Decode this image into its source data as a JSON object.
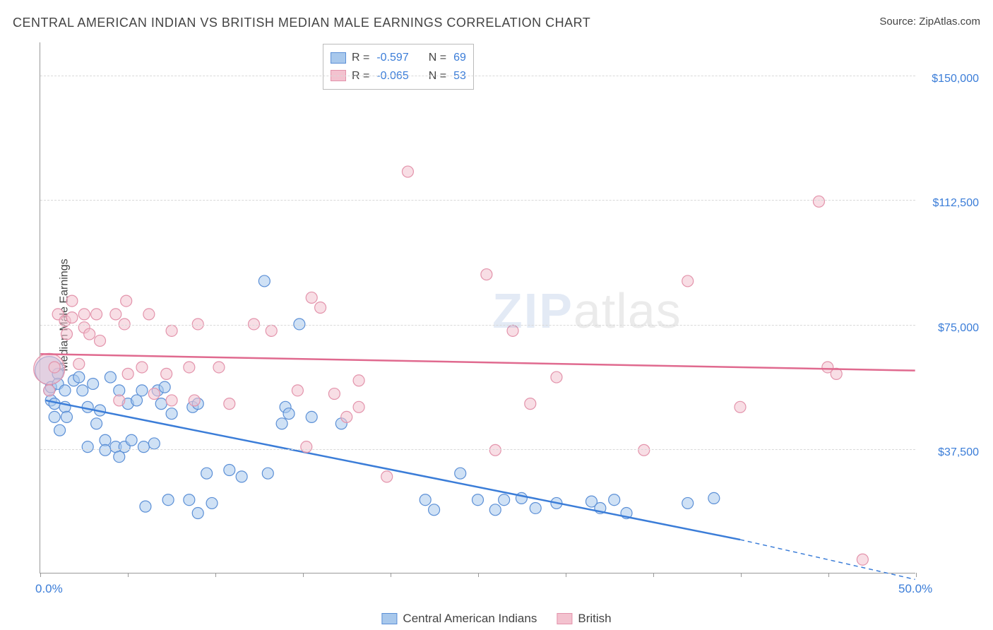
{
  "title": "CENTRAL AMERICAN INDIAN VS BRITISH MEDIAN MALE EARNINGS CORRELATION CHART",
  "source_label": "Source:",
  "source_name": "ZipAtlas.com",
  "watermark_zip": "ZIP",
  "watermark_atlas": "atlas",
  "y_axis_title": "Median Male Earnings",
  "chart": {
    "type": "scatter",
    "background_color": "#ffffff",
    "grid_color": "#d9d9d9",
    "axis_color": "#999999",
    "text_color": "#444444",
    "value_color": "#3b7dd8",
    "xlim": [
      0,
      50
    ],
    "ylim": [
      0,
      160000
    ],
    "x_ticks": [
      0,
      5,
      10,
      15,
      20,
      25,
      30,
      35,
      40,
      45,
      50
    ],
    "x_tick_labels": {
      "0": "0.0%",
      "50": "50.0%"
    },
    "y_gridlines": [
      37500,
      75000,
      112500,
      150000
    ],
    "y_tick_labels": {
      "37500": "$37,500",
      "75000": "$75,000",
      "112500": "$112,500",
      "150000": "$150,000"
    },
    "marker_radius": 8,
    "marker_opacity": 0.55,
    "trend_line_width": 2.5,
    "series": [
      {
        "name": "Central American Indians",
        "marker_fill": "#a8c8ec",
        "marker_stroke": "#5b8fd6",
        "trend_color": "#3b7dd8",
        "R": "-0.597",
        "N": "69",
        "trend": {
          "x1": 0.3,
          "y1": 52000,
          "x2": 40,
          "y2": 10000,
          "dash_x2": 50,
          "dash_y2": -2000
        },
        "large_points": [
          {
            "x": 0.5,
            "y": 61000,
            "r": 20
          }
        ],
        "points": [
          {
            "x": 0.5,
            "y": 55000
          },
          {
            "x": 0.6,
            "y": 56000
          },
          {
            "x": 0.6,
            "y": 52000
          },
          {
            "x": 0.8,
            "y": 51000
          },
          {
            "x": 0.8,
            "y": 47000
          },
          {
            "x": 1.0,
            "y": 60000
          },
          {
            "x": 1.0,
            "y": 57000
          },
          {
            "x": 1.1,
            "y": 43000
          },
          {
            "x": 1.4,
            "y": 55000
          },
          {
            "x": 1.4,
            "y": 50000
          },
          {
            "x": 1.5,
            "y": 47000
          },
          {
            "x": 1.9,
            "y": 58000
          },
          {
            "x": 2.2,
            "y": 59000
          },
          {
            "x": 2.4,
            "y": 55000
          },
          {
            "x": 2.7,
            "y": 38000
          },
          {
            "x": 2.7,
            "y": 50000
          },
          {
            "x": 3.0,
            "y": 57000
          },
          {
            "x": 3.2,
            "y": 45000
          },
          {
            "x": 3.4,
            "y": 49000
          },
          {
            "x": 3.7,
            "y": 40000
          },
          {
            "x": 3.7,
            "y": 37000
          },
          {
            "x": 4.0,
            "y": 59000
          },
          {
            "x": 4.3,
            "y": 38000
          },
          {
            "x": 4.5,
            "y": 35000
          },
          {
            "x": 4.5,
            "y": 55000
          },
          {
            "x": 4.8,
            "y": 38000
          },
          {
            "x": 5.0,
            "y": 51000
          },
          {
            "x": 5.2,
            "y": 40000
          },
          {
            "x": 5.5,
            "y": 52000
          },
          {
            "x": 5.8,
            "y": 55000
          },
          {
            "x": 5.9,
            "y": 38000
          },
          {
            "x": 6.0,
            "y": 20000
          },
          {
            "x": 6.5,
            "y": 39000
          },
          {
            "x": 6.7,
            "y": 55000
          },
          {
            "x": 6.9,
            "y": 51000
          },
          {
            "x": 7.1,
            "y": 56000
          },
          {
            "x": 7.3,
            "y": 22000
          },
          {
            "x": 7.5,
            "y": 48000
          },
          {
            "x": 8.5,
            "y": 22000
          },
          {
            "x": 8.7,
            "y": 50000
          },
          {
            "x": 9.0,
            "y": 18000
          },
          {
            "x": 9.0,
            "y": 51000
          },
          {
            "x": 9.5,
            "y": 30000
          },
          {
            "x": 9.8,
            "y": 21000
          },
          {
            "x": 10.8,
            "y": 31000
          },
          {
            "x": 11.5,
            "y": 29000
          },
          {
            "x": 12.8,
            "y": 88000
          },
          {
            "x": 13.0,
            "y": 30000
          },
          {
            "x": 13.8,
            "y": 45000
          },
          {
            "x": 14.0,
            "y": 50000
          },
          {
            "x": 14.2,
            "y": 48000
          },
          {
            "x": 14.8,
            "y": 75000
          },
          {
            "x": 15.5,
            "y": 47000
          },
          {
            "x": 17.2,
            "y": 45000
          },
          {
            "x": 22.0,
            "y": 22000
          },
          {
            "x": 22.5,
            "y": 19000
          },
          {
            "x": 24.0,
            "y": 30000
          },
          {
            "x": 25.0,
            "y": 22000
          },
          {
            "x": 26.0,
            "y": 19000
          },
          {
            "x": 26.5,
            "y": 22000
          },
          {
            "x": 27.5,
            "y": 22500
          },
          {
            "x": 28.3,
            "y": 19500
          },
          {
            "x": 29.5,
            "y": 21000
          },
          {
            "x": 31.5,
            "y": 21500
          },
          {
            "x": 32.0,
            "y": 19500
          },
          {
            "x": 32.8,
            "y": 22000
          },
          {
            "x": 33.5,
            "y": 18000
          },
          {
            "x": 37.0,
            "y": 21000
          },
          {
            "x": 38.5,
            "y": 22500
          }
        ]
      },
      {
        "name": "British",
        "marker_fill": "#f3c2cf",
        "marker_stroke": "#e393ab",
        "trend_color": "#e06a8f",
        "R": "-0.065",
        "N": "53",
        "trend": {
          "x1": 0,
          "y1": 66000,
          "x2": 50,
          "y2": 61000
        },
        "large_points": [
          {
            "x": 0.5,
            "y": 61500,
            "r": 22
          }
        ],
        "points": [
          {
            "x": 0.5,
            "y": 55000
          },
          {
            "x": 0.8,
            "y": 62000
          },
          {
            "x": 1.0,
            "y": 78000
          },
          {
            "x": 1.4,
            "y": 76000
          },
          {
            "x": 1.5,
            "y": 72000
          },
          {
            "x": 1.8,
            "y": 82000
          },
          {
            "x": 1.8,
            "y": 77000
          },
          {
            "x": 2.2,
            "y": 63000
          },
          {
            "x": 2.5,
            "y": 74000
          },
          {
            "x": 2.5,
            "y": 78000
          },
          {
            "x": 2.8,
            "y": 72000
          },
          {
            "x": 3.2,
            "y": 78000
          },
          {
            "x": 3.4,
            "y": 70000
          },
          {
            "x": 4.3,
            "y": 78000
          },
          {
            "x": 4.5,
            "y": 52000
          },
          {
            "x": 4.8,
            "y": 75000
          },
          {
            "x": 4.9,
            "y": 82000
          },
          {
            "x": 5.0,
            "y": 60000
          },
          {
            "x": 5.8,
            "y": 62000
          },
          {
            "x": 6.2,
            "y": 78000
          },
          {
            "x": 6.5,
            "y": 54000
          },
          {
            "x": 7.2,
            "y": 60000
          },
          {
            "x": 7.5,
            "y": 73000
          },
          {
            "x": 7.5,
            "y": 52000
          },
          {
            "x": 8.5,
            "y": 62000
          },
          {
            "x": 8.8,
            "y": 52000
          },
          {
            "x": 9.0,
            "y": 75000
          },
          {
            "x": 10.2,
            "y": 62000
          },
          {
            "x": 10.8,
            "y": 51000
          },
          {
            "x": 12.2,
            "y": 75000
          },
          {
            "x": 13.2,
            "y": 73000
          },
          {
            "x": 14.7,
            "y": 55000
          },
          {
            "x": 15.2,
            "y": 38000
          },
          {
            "x": 15.5,
            "y": 83000
          },
          {
            "x": 16.0,
            "y": 80000
          },
          {
            "x": 16.8,
            "y": 54000
          },
          {
            "x": 17.5,
            "y": 47000
          },
          {
            "x": 18.2,
            "y": 50000
          },
          {
            "x": 18.2,
            "y": 58000
          },
          {
            "x": 19.8,
            "y": 29000
          },
          {
            "x": 21.0,
            "y": 121000
          },
          {
            "x": 25.5,
            "y": 90000
          },
          {
            "x": 26.0,
            "y": 37000
          },
          {
            "x": 27.0,
            "y": 73000
          },
          {
            "x": 28.0,
            "y": 51000
          },
          {
            "x": 29.5,
            "y": 59000
          },
          {
            "x": 34.5,
            "y": 37000
          },
          {
            "x": 37.0,
            "y": 88000
          },
          {
            "x": 40.0,
            "y": 50000
          },
          {
            "x": 44.5,
            "y": 112000
          },
          {
            "x": 45.0,
            "y": 62000
          },
          {
            "x": 45.5,
            "y": 60000
          },
          {
            "x": 47.0,
            "y": 4000
          }
        ]
      }
    ]
  },
  "legend_top": {
    "r_label": "R =",
    "n_label": "N ="
  },
  "legend_bottom": {
    "series1": "Central American Indians",
    "series2": "British"
  }
}
